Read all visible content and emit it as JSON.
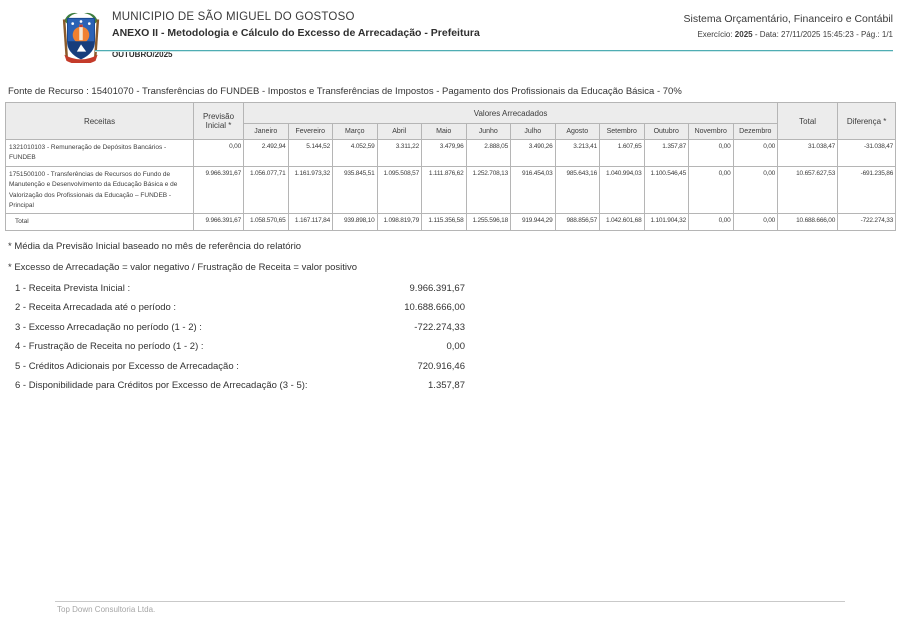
{
  "header": {
    "municipality": "MUNICIPIO DE SÃO MIGUEL DO GOSTOSO",
    "report_title": "ANEXO II - Metodologia e Cálculo do Excesso de Arrecadação - Prefeitura",
    "period": "OUTUBRO/2025",
    "system_name": "Sistema Orçamentário, Financeiro e Contábil",
    "exercise_label": "Exercício:",
    "exercise_value": "2025",
    "meta_rest": " - Data: 27/11/2025 15:45:23 -  Pág.: 1/1",
    "accent_color": "#4fadb3"
  },
  "fonte": "Fonte de Recurso : 15401070 - Transferências do FUNDEB - Impostos e Transferências de Impostos - Pagamento  dos Profissionais da Educação Básica - 70%",
  "table": {
    "col_receitas": "Receitas",
    "col_previsao": "Previsão Inicial *",
    "col_group": "Valores Arrecadados",
    "months": [
      "Janeiro",
      "Fevereiro",
      "Março",
      "Abril",
      "Maio",
      "Junho",
      "Julho",
      "Agosto",
      "Setembro",
      "Outubro",
      "Novembro",
      "Dezembro"
    ],
    "col_total": "Total",
    "col_diferenca": "Diferença *",
    "rows": [
      {
        "name": "1321010103 - Remuneração de Depósitos Bancários - FUNDEB",
        "previsao": "0,00",
        "months": [
          "2.492,94",
          "5.144,52",
          "4.052,59",
          "3.311,22",
          "3.479,96",
          "2.888,05",
          "3.490,26",
          "3.213,41",
          "1.607,65",
          "1.357,87",
          "0,00",
          "0,00"
        ],
        "total": "31.038,47",
        "diferenca": "-31.038,47"
      },
      {
        "name": "1751500100 - Transferências de Recursos do Fundo de Manutenção e Desenvolvimento da Educação Básica e de Valorização dos Profissionais da Educação – FUNDEB - Principal",
        "previsao": "9.966.391,67",
        "months": [
          "1.056.077,71",
          "1.161.973,32",
          "935.845,51",
          "1.095.508,57",
          "1.111.876,62",
          "1.252.708,13",
          "916.454,03",
          "985.643,16",
          "1.040.994,03",
          "1.100.546,45",
          "0,00",
          "0,00"
        ],
        "total": "10.657.627,53",
        "diferenca": "-691.235,86"
      }
    ],
    "total_row": {
      "name": "Total",
      "previsao": "9.966.391,67",
      "months": [
        "1.058.570,65",
        "1.167.117,84",
        "939.898,10",
        "1.098.819,79",
        "1.115.356,58",
        "1.255.596,18",
        "919.944,29",
        "988.856,57",
        "1.042.601,68",
        "1.101.904,32",
        "0,00",
        "0,00"
      ],
      "total": "10.688.666,00",
      "diferenca": "-722.274,33"
    }
  },
  "notes": [
    "* Média da Previsão Inicial baseado no mês de referência do relatório",
    "* Excesso de Arrecadação = valor negativo / Frustração de Receita = valor positivo"
  ],
  "items": [
    {
      "label": "1 - Receita Prevista Inicial :",
      "value": "9.966.391,67"
    },
    {
      "label": "2 - Receita Arrecadada até o período :",
      "value": "10.688.666,00"
    },
    {
      "label": "3 - Excesso Arrecadação no período (1 - 2) :",
      "value": "-722.274,33"
    },
    {
      "label": "4 - Frustração de Receita no período (1 - 2) :",
      "value": "0,00"
    },
    {
      "label": "5 - Créditos Adicionais por Excesso de Arrecadação :",
      "value": "720.916,46"
    },
    {
      "label": "6 - Disponibilidade para Créditos por Excesso de Arrecadação (3 - 5):",
      "value": "1.357,87"
    }
  ],
  "footer": "Top Down Consultoria Ltda."
}
